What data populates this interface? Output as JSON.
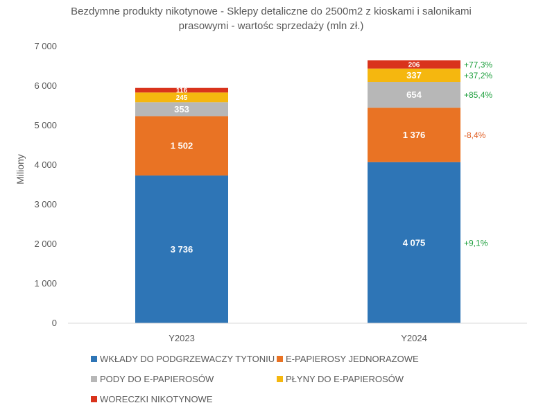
{
  "chart_data": {
    "type": "bar",
    "stacked": true,
    "title_lines": [
      "Bezdymne produkty nikotynowe - Sklepy detaliczne do 2500m2 z kioskami i salonikami",
      "prasowymi - wartośc sprzedaży (mln zł.)"
    ],
    "ylabel": "Miliony",
    "ylim": [
      0,
      7000
    ],
    "yticks": [
      0,
      1000,
      2000,
      3000,
      4000,
      5000,
      6000,
      7000
    ],
    "ytick_labels": [
      "0",
      "1 000",
      "2 000",
      "3 000",
      "4 000",
      "5 000",
      "6 000",
      "7 000"
    ],
    "categories": [
      "Y2023",
      "Y2024"
    ],
    "series": [
      {
        "name": "WKŁADY DO PODGRZEWACZY TYTONIU",
        "color": "#2E75B6",
        "values": [
          3736,
          4075
        ],
        "labels": [
          "3 736",
          "4 075"
        ],
        "change": "+9,1%",
        "change_color": "#1a9e3a"
      },
      {
        "name": "E-PAPIEROSY JEDNORAZOWE",
        "color": "#E97324",
        "values": [
          1502,
          1376
        ],
        "labels": [
          "1 502",
          "1 376"
        ],
        "change": "-8,4%",
        "change_color": "#E05A1E"
      },
      {
        "name": "PODY DO E-PAPIEROSÓW",
        "color": "#B7B7B7",
        "values": [
          353,
          654
        ],
        "labels": [
          "353",
          "654"
        ],
        "change": "+85,4%",
        "change_color": "#1a9e3a"
      },
      {
        "name": "PŁYNY DO E-PAPIEROSÓW",
        "color": "#F5B70F",
        "values": [
          245,
          337
        ],
        "labels": [
          "245",
          "337"
        ],
        "change": "+37,2%",
        "change_color": "#1a9e3a"
      },
      {
        "name": "WORECZKI NIKOTYNOWE",
        "color": "#D9331C",
        "values": [
          116,
          206
        ],
        "labels": [
          "116",
          "206"
        ],
        "change": "+77,3%",
        "change_color": "#1a9e3a"
      }
    ],
    "legend_position": "bottom"
  }
}
